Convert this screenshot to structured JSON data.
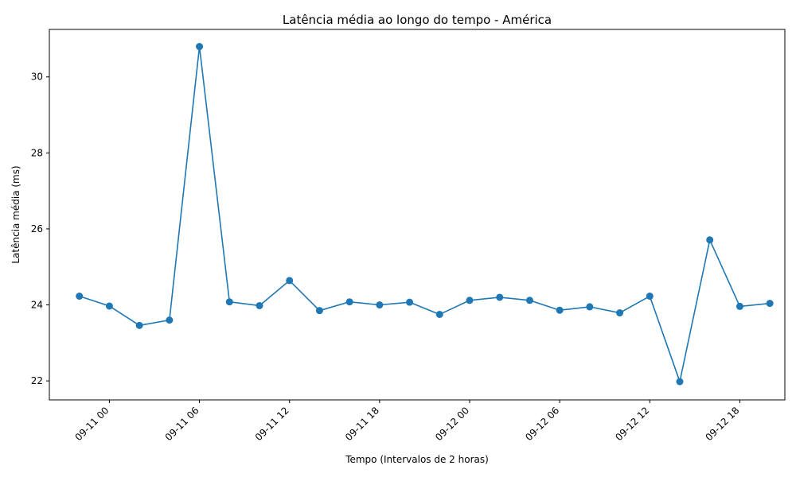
{
  "chart_data": {
    "type": "line",
    "title": "Latência média ao longo do tempo - América",
    "xlabel": "Tempo (Intervalos de 2 horas)",
    "ylabel": "Latência média (ms)",
    "x_tick_labels": [
      "09-11 00",
      "09-11 06",
      "09-11 12",
      "09-11 18",
      "09-12 00",
      "09-12 06",
      "09-12 12",
      "09-12 18"
    ],
    "y_tick_labels": [
      "22",
      "24",
      "26",
      "28",
      "30"
    ],
    "ylim": [
      21.5,
      31.25
    ],
    "xlim": [
      "09-10 20:00",
      "09-12 21:00"
    ],
    "grid": false,
    "legend": "none",
    "series": [
      {
        "color": "#1f77b4",
        "x": [
          "09-10 22:00",
          "09-11 00:00",
          "09-11 02:00",
          "09-11 04:00",
          "09-11 06:00",
          "09-11 08:00",
          "09-11 10:00",
          "09-11 12:00",
          "09-11 14:00",
          "09-11 16:00",
          "09-11 18:00",
          "09-11 20:00",
          "09-11 22:00",
          "09-12 00:00",
          "09-12 02:00",
          "09-12 04:00",
          "09-12 06:00",
          "09-12 08:00",
          "09-12 10:00",
          "09-12 12:00",
          "09-12 14:00",
          "09-12 16:00",
          "09-12 18:00",
          "09-12 20:00"
        ],
        "y": [
          24.23,
          23.97,
          23.46,
          23.6,
          30.8,
          24.08,
          23.98,
          24.64,
          23.85,
          24.08,
          24.0,
          24.07,
          23.75,
          24.12,
          24.2,
          24.12,
          23.86,
          23.95,
          23.79,
          24.23,
          21.98,
          25.71,
          23.96,
          24.04
        ]
      }
    ]
  }
}
